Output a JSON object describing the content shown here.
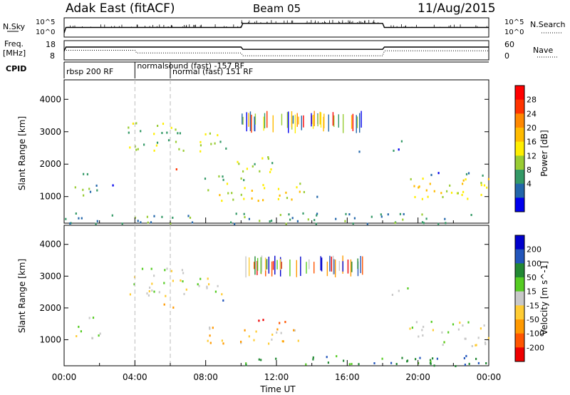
{
  "header": {
    "title": "Adak East (fitACF)",
    "beam": "Beam 05",
    "date": "11/Aug/2015"
  },
  "chart_data": [
    {
      "type": "line",
      "panel": "sky-search",
      "left_label": "N.Sky",
      "right_label": "N.Search",
      "yticks_left": [
        "10^5",
        "10^0"
      ],
      "yticks_right": [
        "10^5",
        "10^0"
      ],
      "series": [
        {
          "x": [
            0,
            0.1,
            0.2,
            10,
            10.1,
            18,
            18.1,
            24
          ],
          "values": [
            1,
            3,
            3,
            3,
            4.5,
            4.5,
            3,
            3
          ]
        }
      ]
    },
    {
      "type": "line",
      "panel": "freq-nave",
      "left_label_top": "Freq.",
      "left_label_unit": "[MHz]",
      "right_label": "Nave",
      "yticks_left": [
        "18",
        "8"
      ],
      "yticks_right": [
        "60",
        "0"
      ],
      "series": [
        {
          "x": [
            0,
            0.1,
            10,
            10.1,
            18,
            18.1,
            24
          ],
          "values": [
            8,
            12.5,
            12.5,
            10,
            10,
            12.5,
            12.5
          ]
        },
        {
          "x": [
            0,
            4,
            4.1,
            10,
            10.1,
            18,
            18.1,
            24
          ],
          "values": [
            30,
            30,
            20,
            20,
            10,
            10,
            28,
            28
          ]
        }
      ]
    },
    {
      "type": "table",
      "panel": "cpid",
      "label": "CPID",
      "entries": [
        {
          "start": 0,
          "text": "rbsp 200 RF",
          "row": 1
        },
        {
          "start": 4,
          "text": "normalsound (fast) -157 RF",
          "row": 0
        },
        {
          "start": 6,
          "text": "normal (fast) 151 RF",
          "row": 1
        }
      ]
    },
    {
      "type": "heatmap",
      "panel": "power",
      "ylabel": "Slant Range [km]",
      "yticks": [
        1000,
        2000,
        3000,
        4000
      ],
      "ylim": [
        180,
        4600
      ],
      "xlim": [
        0,
        24
      ],
      "colorbar_label": "Power [dB]",
      "colorbar_ticks": [
        "28",
        "24",
        "20",
        "16",
        "12",
        "8",
        "4"
      ],
      "colorbar_colors": [
        "#ff0000",
        "#ff3300",
        "#ff8800",
        "#ffbb00",
        "#ffee00",
        "#99cc33",
        "#339966",
        "#2266aa",
        "#0000ee"
      ],
      "regions": [
        {
          "x0": 0.2,
          "x1": 2.2,
          "y0": 1050,
          "y1": 1450,
          "level": 2
        },
        {
          "x0": 0.2,
          "x1": 1.8,
          "y0": 1650,
          "y1": 1800,
          "level": 2
        },
        {
          "x0": 2.0,
          "x1": 3.0,
          "y0": 1350,
          "y1": 1450,
          "level": 1
        },
        {
          "x0": 3.5,
          "x1": 7.0,
          "y0": 2400,
          "y1": 3300,
          "level": 3
        },
        {
          "x0": 6.3,
          "x1": 6.9,
          "y0": 1820,
          "y1": 2020,
          "level": 7
        },
        {
          "x0": 7.5,
          "x1": 9.5,
          "y0": 2400,
          "y1": 3000,
          "level": 3
        },
        {
          "x0": 7.5,
          "x1": 10.5,
          "y0": 1450,
          "y1": 1700,
          "level": 2
        },
        {
          "x0": 8.0,
          "x1": 13.5,
          "y0": 900,
          "y1": 1450,
          "level": 4
        },
        {
          "x0": 9.5,
          "x1": 12.0,
          "y0": 1700,
          "y1": 2300,
          "level": 3
        },
        {
          "x0": 13.5,
          "x1": 14.5,
          "y0": 950,
          "y1": 1200,
          "level": 2
        },
        {
          "x0": 19.5,
          "x1": 24.0,
          "y0": 800,
          "y1": 1600,
          "level": 4
        },
        {
          "x0": 19.0,
          "x1": 24.0,
          "y0": 1650,
          "y1": 1780,
          "level": 1
        },
        {
          "x0": 18.5,
          "x1": 19.5,
          "y0": 2400,
          "y1": 2750,
          "level": 1
        },
        {
          "x0": 16.5,
          "x1": 17.0,
          "y0": 2200,
          "y1": 2500,
          "level": 1
        },
        {
          "x0": 0.0,
          "x1": 24.0,
          "y0": 180,
          "y1": 520,
          "level": 2
        }
      ]
    },
    {
      "type": "heatmap",
      "panel": "velocity",
      "ylabel": "Slant Range [km]",
      "yticks": [
        1000,
        2000,
        3000,
        4000
      ],
      "ylim": [
        180,
        4600
      ],
      "xlim": [
        0,
        24
      ],
      "xticks": [
        "00:00",
        "04:00",
        "08:00",
        "12:00",
        "16:00",
        "20:00",
        "00:00"
      ],
      "xlabel": "Time UT",
      "colorbar_label": "Velocity [m s^-1]",
      "colorbar_ticks": [
        "200",
        "100",
        "50",
        "15",
        "-15",
        "-50",
        "-100",
        "-200"
      ],
      "colorbar_colors": [
        "#0000cc",
        "#2255bb",
        "#228833",
        "#55cc22",
        "#c8c8c8",
        "#ffcc33",
        "#ff9900",
        "#ff5500",
        "#ee0000"
      ],
      "regions": [
        {
          "x0": 0.2,
          "x1": 2.2,
          "y0": 1050,
          "y1": 1450,
          "level": 4
        },
        {
          "x0": 0.2,
          "x1": 1.8,
          "y0": 1650,
          "y1": 1800,
          "level": 4
        },
        {
          "x0": 3.5,
          "x1": 7.0,
          "y0": 2400,
          "y1": 3300,
          "level": 4
        },
        {
          "x0": 5.0,
          "x1": 6.5,
          "y0": 2000,
          "y1": 2150,
          "level": 2
        },
        {
          "x0": 7.5,
          "x1": 9.5,
          "y0": 2400,
          "y1": 3000,
          "level": 4
        },
        {
          "x0": 8.0,
          "x1": 13.5,
          "y0": 900,
          "y1": 1450,
          "level": 3
        },
        {
          "x0": 10.0,
          "x1": 12.5,
          "y0": 1550,
          "y1": 1720,
          "level": 0
        },
        {
          "x0": 8.8,
          "x1": 9.3,
          "y0": 2150,
          "y1": 2300,
          "level": 8
        },
        {
          "x0": 19.5,
          "x1": 24.0,
          "y0": 800,
          "y1": 1600,
          "level": 4
        },
        {
          "x0": 18.5,
          "x1": 19.5,
          "y0": 2400,
          "y1": 2750,
          "level": 4
        },
        {
          "x0": 10.0,
          "x1": 24.0,
          "y0": 180,
          "y1": 520,
          "level": 6
        }
      ]
    }
  ]
}
